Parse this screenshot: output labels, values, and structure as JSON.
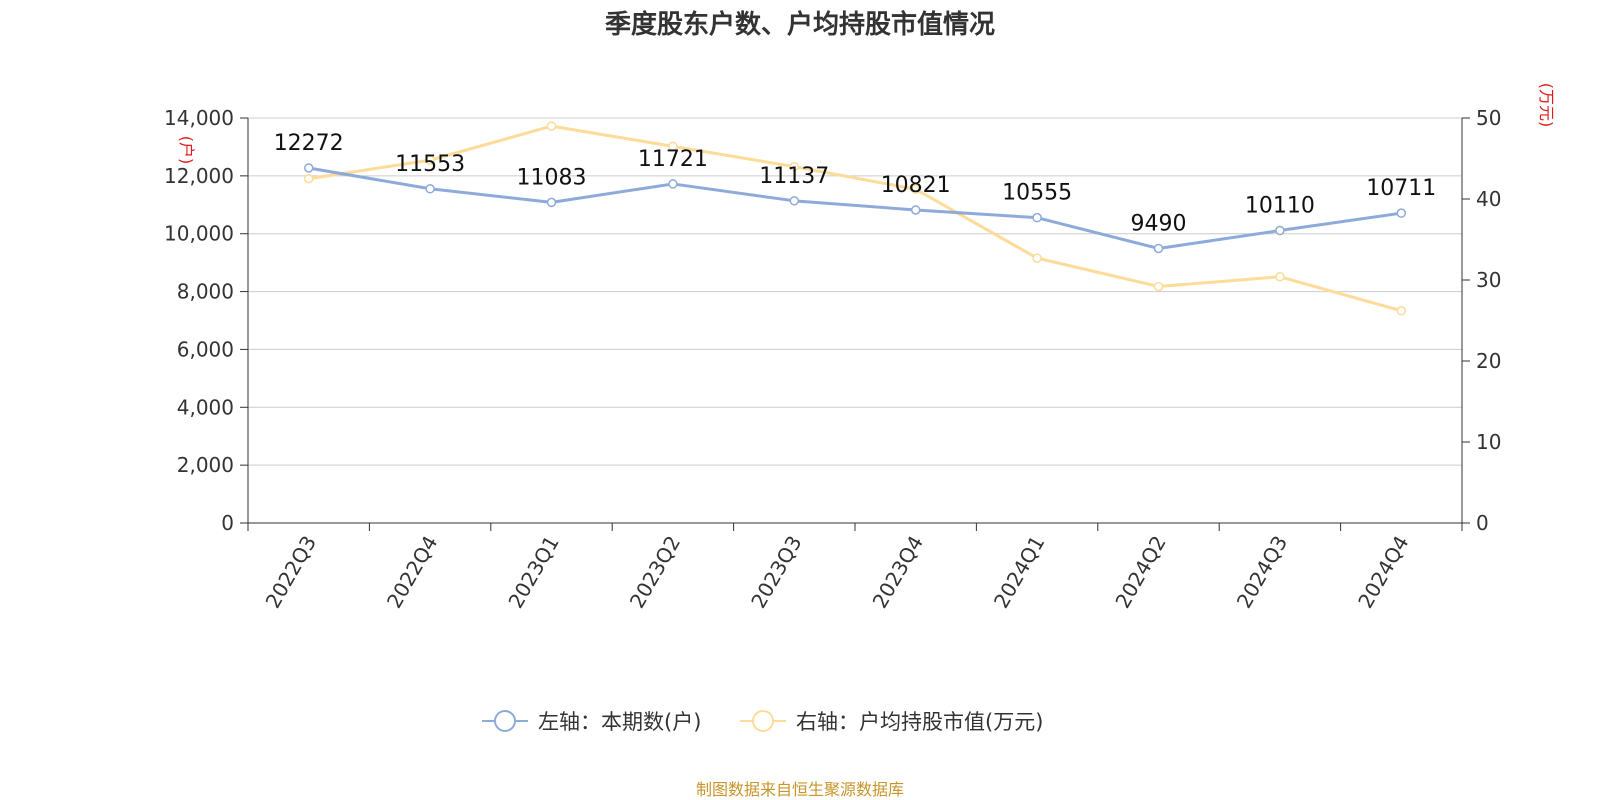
{
  "chart_data": {
    "type": "line",
    "title": "季度股东户数、户均持股市值情况",
    "categories": [
      "2022Q3",
      "2022Q4",
      "2023Q1",
      "2023Q2",
      "2023Q3",
      "2023Q4",
      "2024Q1",
      "2024Q2",
      "2024Q3",
      "2024Q4"
    ],
    "y_left": {
      "unit": "(户)",
      "ylim": [
        0,
        14000
      ],
      "ticks": [
        0,
        2000,
        4000,
        6000,
        8000,
        10000,
        12000,
        14000
      ],
      "tick_labels": [
        "0",
        "2,000",
        "4,000",
        "6,000",
        "8,000",
        "10,000",
        "12,000",
        "14,000"
      ]
    },
    "y_right": {
      "unit": "(万元)",
      "ylim": [
        0,
        50
      ],
      "ticks": [
        0,
        10,
        20,
        30,
        40,
        50
      ],
      "tick_labels": [
        "0",
        "10",
        "20",
        "30",
        "40",
        "50"
      ]
    },
    "series": [
      {
        "name": "左轴：本期数(户)",
        "axis": "left",
        "color": "#8eaadb",
        "values": [
          12272,
          11553,
          11083,
          11721,
          11137,
          10821,
          10555,
          9490,
          10110,
          10711
        ],
        "data_labels": [
          "12272",
          "11553",
          "11083",
          "11721",
          "11137",
          "10821",
          "10555",
          "9490",
          "10110",
          "10711"
        ]
      },
      {
        "name": "右轴：户均持股市值(万元)",
        "axis": "right",
        "color": "#fddb98",
        "values": [
          42.5,
          44.8,
          49.0,
          46.5,
          44.0,
          41.2,
          32.7,
          29.2,
          30.4,
          26.2
        ]
      }
    ],
    "grid": true,
    "legend_position": "bottom-center"
  },
  "source_note": "制图数据来自恒生聚源数据库"
}
